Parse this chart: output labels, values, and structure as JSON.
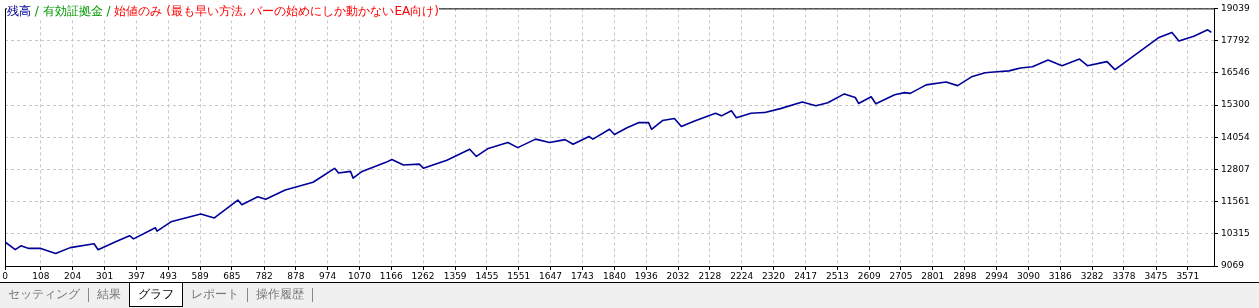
{
  "chart_data": {
    "type": "line",
    "title": "/ 有効証拠金 / 始値のみ (最も早い方法, バーの始めにしか動かないEA向け)",
    "series": [
      {
        "name": "残高",
        "color": "#000099",
        "x": [
          0,
          31,
          48,
          72,
          108,
          153,
          197,
          269,
          281,
          334,
          376,
          388,
          454,
          459,
          501,
          591,
          632,
          703,
          715,
          763,
          787,
          846,
          930,
          995,
          1007,
          1043,
          1051,
          1078,
          1150,
          1168,
          1203,
          1251,
          1263,
          1334,
          1403,
          1423,
          1459,
          1518,
          1548,
          1602,
          1644,
          1691,
          1715,
          1763,
          1775,
          1825,
          1840,
          1878,
          1914,
          1943,
          1952,
          1985,
          2021,
          2042,
          2080,
          2145,
          2163,
          2193,
          2208,
          2252,
          2294,
          2341,
          2407,
          2448,
          2484,
          2534,
          2567,
          2577,
          2615,
          2629,
          2686,
          2716,
          2733,
          2781,
          2841,
          2876,
          2918,
          2959,
          2995,
          3031,
          3066,
          3102,
          3149,
          3191,
          3244,
          3268,
          3327,
          3351,
          3482,
          3523,
          3544,
          3589,
          3631,
          3642
        ],
        "values": [
          10000,
          9700,
          9850,
          9750,
          9750,
          9550,
          9780,
          9930,
          9700,
          10010,
          10240,
          10120,
          10550,
          10420,
          10780,
          11080,
          10930,
          11620,
          11440,
          11750,
          11650,
          12010,
          12310,
          12850,
          12670,
          12730,
          12470,
          12730,
          13080,
          13190,
          12980,
          13010,
          12850,
          13160,
          13590,
          13310,
          13620,
          13850,
          13650,
          13980,
          13850,
          13960,
          13780,
          14080,
          13980,
          14360,
          14160,
          14420,
          14620,
          14620,
          14360,
          14700,
          14780,
          14470,
          14670,
          14980,
          14880,
          15080,
          14810,
          14980,
          15010,
          15160,
          15420,
          15270,
          15390,
          15730,
          15590,
          15360,
          15620,
          15350,
          15700,
          15780,
          15750,
          16080,
          16190,
          16050,
          16390,
          16550,
          16590,
          16620,
          16730,
          16780,
          17040,
          16820,
          17080,
          16820,
          16980,
          16670,
          17900,
          18110,
          17780,
          17960,
          18210,
          18110
        ]
      }
    ],
    "xlim": [
      0,
      3650
    ],
    "xticks": [
      0,
      108,
      204,
      301,
      397,
      493,
      589,
      685,
      782,
      878,
      974,
      1070,
      1166,
      1262,
      1359,
      1455,
      1551,
      1647,
      1743,
      1840,
      1936,
      2032,
      2128,
      2224,
      2320,
      2417,
      2513,
      2609,
      2705,
      2801,
      2898,
      2994,
      3090,
      3186,
      3282,
      3378,
      3475,
      3571
    ],
    "ylim": [
      9069,
      19039
    ],
    "yticks": [
      9069,
      10315,
      11561,
      12807,
      14054,
      15300,
      16546,
      17792,
      19039
    ],
    "grid": true,
    "legend": false,
    "marker": "none",
    "line_style": "solid",
    "annotations": [
      "セッティング",
      "結果",
      "グラフ",
      "レポート",
      "操作履歴"
    ]
  }
}
